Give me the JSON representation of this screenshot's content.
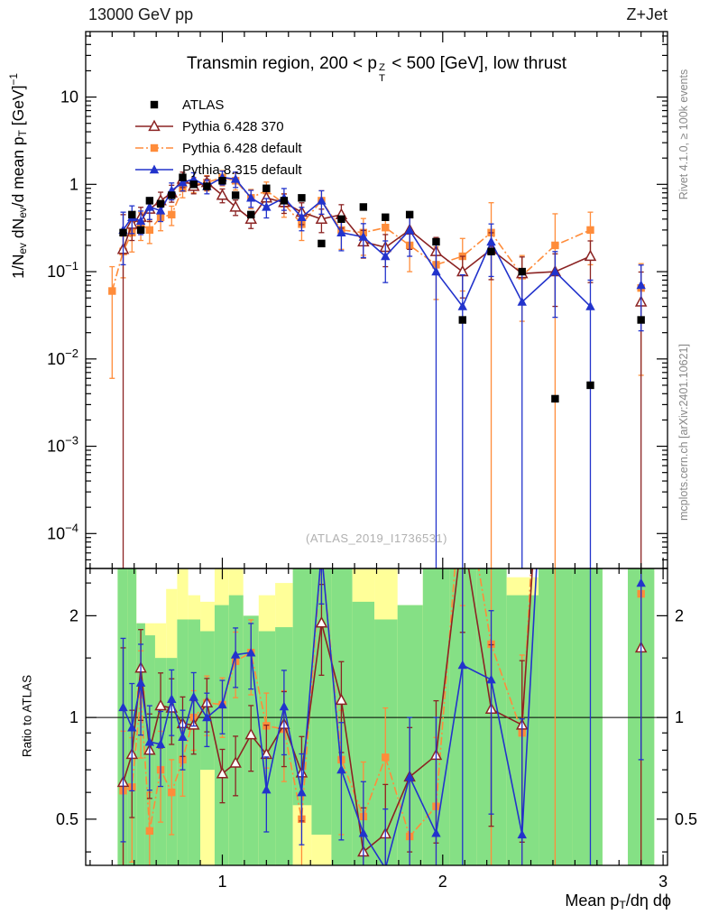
{
  "header": {
    "left": "13000 GeV pp",
    "right": "Z+Jet"
  },
  "title_segments": [
    {
      "t": "Transmin region, 200 < p"
    },
    {
      "stack": {
        "top": "Z",
        "bottom": "T"
      }
    },
    {
      "t": " < 500 [GeV], low thrust"
    }
  ],
  "watermark": "(ATLAS_2019_I1736531)",
  "side_notes": {
    "top": "Rivet 4.1.0, ≥ 100k events",
    "bottom": "mcplots.cern.ch [arXiv:2401.10621]"
  },
  "axes": {
    "y_main_title_segments": [
      {
        "t": "1/N"
      },
      {
        "t": "ev",
        "s": "sub"
      },
      {
        "t": " dN"
      },
      {
        "t": "ev",
        "s": "sub"
      },
      {
        "t": "/d mean p"
      },
      {
        "t": "T",
        "s": "sub"
      },
      {
        "t": " [GeV]"
      },
      {
        "t": "−1",
        "s": "sup"
      }
    ],
    "y_ratio_label": "Ratio to ATLAS",
    "x_title_segments": [
      {
        "t": "Mean p"
      },
      {
        "t": "T",
        "s": "sub"
      },
      {
        "t": "/dη dϕ"
      }
    ],
    "x_ticks": [
      1,
      2,
      3
    ],
    "y_main_tick_exponents": [
      1,
      0,
      -1,
      -2,
      -3,
      -4
    ],
    "y_ratio_ticks": [
      2,
      1,
      0.5
    ],
    "y_ratio_minor_ticks": [
      0.4,
      0.6,
      0.7,
      0.8,
      0.9,
      1.5,
      2.5
    ]
  },
  "colors": {
    "atlas": "#000000",
    "pythia6_370": "#8b2323",
    "pythia6_default": "#ff8c3a",
    "pythia8_default": "#2233cc",
    "band_green": "#85e085",
    "band_yellow": "#ffff99"
  },
  "chart_data": {
    "type": "line",
    "title": "Transmin region, 200 < pT^Z < 500 [GeV], low thrust",
    "xlabel": "Mean pT/dη dϕ",
    "ylabel": "1/N_ev dN_ev/d mean pT [GeV]^-1",
    "ratio_ylabel": "Ratio to ATLAS",
    "x_range": [
      0.38,
      3.02
    ],
    "y_main_log_range": [
      -4.4,
      1.75
    ],
    "ratio_range": [
      0.365,
      2.76
    ],
    "x": [
      0.5,
      0.55,
      0.59,
      0.63,
      0.67,
      0.72,
      0.77,
      0.82,
      0.87,
      0.93,
      1.0,
      1.06,
      1.13,
      1.2,
      1.28,
      1.36,
      1.45,
      1.54,
      1.64,
      1.74,
      1.85,
      1.97,
      2.09,
      2.22,
      2.36,
      2.51,
      2.67,
      2.78,
      2.9
    ],
    "series": [
      {
        "name": "ATLAS",
        "color": "#000000",
        "marker": "square",
        "line": "none",
        "values": [
          null,
          0.28,
          0.45,
          0.3,
          0.65,
          0.6,
          0.75,
          1.2,
          1.0,
          0.95,
          1.1,
          0.75,
          0.45,
          0.9,
          0.65,
          0.7,
          0.21,
          0.4,
          0.55,
          0.42,
          0.45,
          0.22,
          0.028,
          0.17,
          0.1,
          0.0035,
          0.005,
          null,
          0.028
        ],
        "rel_err": 0.06
      },
      {
        "name": "Pythia 6.428 370",
        "color": "#8b2323",
        "marker": "triangle-open",
        "line": "solid",
        "values": [
          null,
          0.18,
          0.35,
          0.42,
          0.52,
          0.65,
          0.8,
          1.15,
          0.95,
          1.05,
          0.75,
          0.55,
          0.4,
          0.7,
          0.62,
          0.48,
          0.4,
          0.45,
          0.22,
          0.19,
          0.3,
          0.17,
          0.1,
          0.18,
          0.095,
          0.1,
          0.15,
          null,
          0.045
        ],
        "rel_err": [
          0.5,
          1.5,
          0.35,
          0.3,
          0.28,
          0.25,
          0.22,
          0.2,
          0.18,
          0.18,
          0.18,
          0.2,
          0.22,
          0.22,
          0.25,
          0.28,
          0.3,
          0.3,
          0.35,
          0.4,
          0.4,
          0.45,
          0.5,
          0.55,
          0.55,
          0.6,
          0.5,
          null,
          1.2
        ]
      },
      {
        "name": "Pythia 6.428 default",
        "color": "#ff8c3a",
        "marker": "square",
        "line": "dashdot",
        "values": [
          0.06,
          0.17,
          0.28,
          0.35,
          0.3,
          0.42,
          0.45,
          0.9,
          1.0,
          1.05,
          1.2,
          1.1,
          0.7,
          0.85,
          0.6,
          0.35,
          0.65,
          0.3,
          0.28,
          0.32,
          0.2,
          0.12,
          0.15,
          0.28,
          0.09,
          0.2,
          0.3,
          null,
          0.065
        ],
        "rel_err": [
          0.9,
          0.5,
          0.4,
          0.35,
          0.3,
          0.3,
          0.25,
          0.22,
          0.2,
          0.2,
          0.2,
          0.22,
          0.25,
          0.25,
          0.3,
          0.35,
          0.3,
          0.4,
          0.45,
          0.4,
          0.5,
          0.6,
          0.6,
          1.2,
          0.7,
          1.3,
          0.6,
          null,
          0.9
        ]
      },
      {
        "name": "Pythia 8.315 default",
        "color": "#2233cc",
        "marker": "triangle",
        "line": "solid",
        "values": [
          null,
          0.3,
          0.42,
          0.38,
          0.55,
          0.5,
          0.85,
          1.05,
          1.15,
          0.95,
          1.2,
          1.15,
          0.7,
          0.55,
          0.7,
          0.42,
          0.65,
          0.28,
          0.25,
          0.15,
          0.3,
          0.1,
          0.04,
          0.22,
          0.045,
          0.1,
          0.04,
          null,
          0.07
        ],
        "rel_err": [
          null,
          0.6,
          0.35,
          0.3,
          0.28,
          0.25,
          0.22,
          0.2,
          0.18,
          0.18,
          0.18,
          0.2,
          0.22,
          0.25,
          0.28,
          0.3,
          0.3,
          0.38,
          0.42,
          0.5,
          0.5,
          1.2,
          1.3,
          0.6,
          1.2,
          0.7,
          1.0,
          null,
          0.7
        ]
      }
    ],
    "ratio": {
      "reference": "ATLAS",
      "bands": [
        null,
        {
          "yellow": [
            0.3,
            3
          ],
          "green": [
            0.3,
            3
          ]
        },
        {
          "yellow": [
            0.3,
            3
          ],
          "green": [
            0.3,
            3
          ]
        },
        {
          "yellow": [
            0.3,
            1.9
          ],
          "green": [
            0.3,
            1.9
          ]
        },
        {
          "yellow": [
            0.3,
            1.9
          ],
          "green": [
            0.3,
            1.75
          ]
        },
        {
          "yellow": [
            0.3,
            1.9
          ],
          "green": [
            0.3,
            1.5
          ]
        },
        {
          "yellow": [
            0.3,
            2.4
          ],
          "green": [
            0.3,
            1.5
          ]
        },
        {
          "yellow": [
            0.3,
            3
          ],
          "green": [
            0.3,
            1.95
          ]
        },
        {
          "yellow": [
            0.3,
            2.3
          ],
          "green": [
            0.3,
            1.95
          ]
        },
        {
          "yellow": [
            0.3,
            2.2
          ],
          "green": [
            0.7,
            1.8
          ]
        },
        {
          "yellow": [
            0.3,
            3
          ],
          "green": [
            0.3,
            2.15
          ]
        },
        {
          "yellow": [
            0.3,
            3
          ],
          "green": [
            0.3,
            2.3
          ]
        },
        {
          "yellow": [
            0.3,
            2.0
          ],
          "green": [
            0.3,
            2.0
          ]
        },
        {
          "yellow": [
            0.3,
            2.3
          ],
          "green": [
            0.3,
            1.8
          ]
        },
        {
          "yellow": [
            0.3,
            2.5
          ],
          "green": [
            0.3,
            1.85
          ]
        },
        {
          "yellow": [
            0.3,
            3
          ],
          "green": [
            0.55,
            3
          ]
        },
        {
          "yellow": [
            0.3,
            3
          ],
          "green": [
            0.45,
            3
          ]
        },
        {
          "yellow": [
            0.3,
            3
          ],
          "green": [
            0.3,
            3
          ]
        },
        {
          "yellow": [
            0.3,
            3
          ],
          "green": [
            0.3,
            2.2
          ]
        },
        {
          "yellow": [
            0.3,
            3
          ],
          "green": [
            0.3,
            1.95
          ]
        },
        {
          "yellow": [
            0.3,
            2.15
          ],
          "green": [
            0.3,
            2.15
          ]
        },
        {
          "yellow": [
            0.3,
            3
          ],
          "green": [
            0.3,
            3
          ]
        },
        {
          "yellow": [
            0.3,
            3
          ],
          "green": [
            0.3,
            3
          ]
        },
        {
          "yellow": [
            0.3,
            3
          ],
          "green": [
            0.3,
            3
          ]
        },
        {
          "yellow": [
            0.3,
            2.6
          ],
          "green": [
            0.3,
            2.3
          ]
        },
        {
          "yellow": [
            0.3,
            3
          ],
          "green": [
            0.3,
            3
          ]
        },
        {
          "yellow": [
            0.3,
            3
          ],
          "green": [
            0.3,
            3
          ]
        },
        null,
        {
          "yellow": [
            0.3,
            3
          ],
          "green": [
            0.3,
            3
          ]
        }
      ]
    }
  }
}
